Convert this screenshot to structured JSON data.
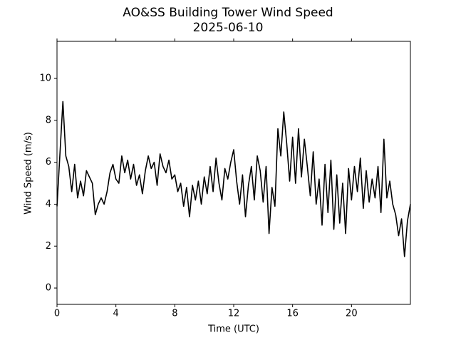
{
  "chart_data": {
    "type": "line",
    "title": "AO&SS Building Tower Wind Speed",
    "subtitle": "2025-06-10",
    "x_label": "Time (UTC)",
    "y_label": "Wind Speed (m/s)",
    "xlim": [
      0,
      24
    ],
    "ylim": [
      -0.78,
      11.77
    ],
    "xticks": [
      0,
      4,
      8,
      12,
      16,
      20
    ],
    "yticks": [
      0,
      2,
      4,
      6,
      8,
      10
    ],
    "series": [
      {
        "color": "#000000",
        "x": [
          0,
          0.2,
          0.4,
          0.6,
          0.8,
          1,
          1.2,
          1.4,
          1.6,
          1.8,
          2,
          2.2,
          2.4,
          2.6,
          2.8,
          3,
          3.2,
          3.4,
          3.6,
          3.8,
          4,
          4.2,
          4.4,
          4.6,
          4.8,
          5,
          5.2,
          5.4,
          5.6,
          5.8,
          6,
          6.2,
          6.4,
          6.6,
          6.8,
          7,
          7.2,
          7.4,
          7.6,
          7.8,
          8,
          8.2,
          8.4,
          8.6,
          8.8,
          9,
          9.2,
          9.4,
          9.6,
          9.8,
          10,
          10.2,
          10.4,
          10.6,
          10.8,
          11,
          11.2,
          11.4,
          11.6,
          11.8,
          12,
          12.2,
          12.4,
          12.6,
          12.8,
          13,
          13.2,
          13.4,
          13.6,
          13.8,
          14,
          14.2,
          14.4,
          14.6,
          14.8,
          15,
          15.2,
          15.4,
          15.6,
          15.8,
          16,
          16.2,
          16.4,
          16.6,
          16.8,
          17,
          17.2,
          17.4,
          17.6,
          17.8,
          18,
          18.2,
          18.4,
          18.6,
          18.8,
          19,
          19.2,
          19.4,
          19.6,
          19.8,
          20,
          20.2,
          20.4,
          20.6,
          20.8,
          21,
          21.2,
          21.4,
          21.6,
          21.8,
          22,
          22.2,
          22.4,
          22.6,
          22.8,
          23,
          23.2,
          23.4,
          23.6,
          23.8,
          24
        ],
        "values": [
          3.9,
          6.4,
          8.9,
          6.3,
          5.8,
          4.6,
          5.9,
          4.3,
          5.1,
          4.4,
          5.6,
          5.3,
          5.0,
          3.5,
          4.0,
          4.3,
          4.0,
          4.6,
          5.5,
          5.9,
          5.2,
          5.0,
          6.3,
          5.5,
          6.1,
          5.2,
          5.9,
          4.9,
          5.4,
          4.5,
          5.6,
          6.3,
          5.7,
          6.0,
          4.9,
          6.4,
          5.8,
          5.5,
          6.1,
          5.2,
          5.4,
          4.6,
          5.0,
          3.9,
          4.8,
          3.4,
          4.9,
          4.2,
          5.1,
          4.0,
          5.3,
          4.5,
          5.8,
          4.6,
          6.2,
          5.0,
          4.2,
          5.7,
          5.2,
          6.0,
          6.6,
          5.1,
          4.0,
          5.4,
          3.4,
          4.9,
          5.8,
          4.2,
          6.3,
          5.6,
          4.1,
          5.8,
          2.6,
          4.8,
          3.9,
          7.6,
          6.3,
          8.4,
          6.9,
          5.1,
          7.2,
          5.0,
          7.6,
          5.3,
          7.1,
          5.8,
          4.4,
          6.5,
          4.0,
          5.2,
          3.0,
          5.9,
          3.6,
          6.1,
          2.8,
          5.4,
          3.1,
          5.0,
          2.6,
          5.7,
          4.2,
          5.8,
          4.6,
          6.2,
          3.8,
          5.6,
          4.1,
          5.2,
          4.3,
          5.8,
          3.6,
          7.1,
          4.3,
          5.1,
          4.0,
          3.5,
          2.5,
          3.3,
          1.5,
          3.2,
          4.0
        ]
      }
    ]
  }
}
